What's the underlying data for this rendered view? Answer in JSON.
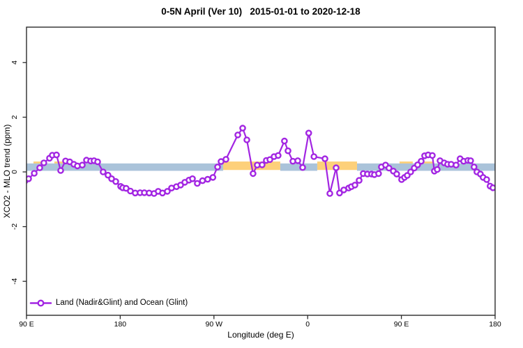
{
  "title": "0-5N April (Ver 10)   2015-01-01 to 2020-12-18",
  "legend_label": "Land (Nadir&Glint) and Ocean (Glint)",
  "colors": {
    "series": "#a225e2",
    "band_blue": "#aac3da",
    "band_yellow": "#fdd07a",
    "axis": "#2b2b2b",
    "text": "#000000",
    "background": "#ffffff"
  },
  "chart_data": {
    "type": "line",
    "title": "0-5N April (Ver 10)   2015-01-01 to 2020-12-18",
    "xlabel": "Longitude (deg E)",
    "ylabel": "XCO2 - MLO trend (ppm)",
    "xlim": [
      90,
      540
    ],
    "ylim": [
      -5.3,
      5.3
    ],
    "grid": false,
    "legend_position": "bottom-left-inside",
    "x_ticks": [
      {
        "value": 90,
        "label": "90 E"
      },
      {
        "value": 180,
        "label": "180"
      },
      {
        "value": 270,
        "label": "90 W"
      },
      {
        "value": 360,
        "label": "0"
      },
      {
        "value": 450,
        "label": "90 E"
      },
      {
        "value": 540,
        "label": "180"
      }
    ],
    "y_ticks": [
      {
        "value": -4,
        "label": "-4"
      },
      {
        "value": -2,
        "label": "-2"
      },
      {
        "value": 0,
        "label": "0"
      },
      {
        "value": 2,
        "label": "2"
      },
      {
        "value": 4,
        "label": "4"
      }
    ],
    "bands": {
      "yellow": {
        "color": "#fdd07a",
        "y_range": [
          0.07,
          0.38
        ],
        "segments": [
          [
            96.7,
            106.1
          ],
          [
            116.8,
            130.2
          ],
          [
            278.8,
            333.7
          ],
          [
            369.2,
            407.4
          ],
          [
            448.2,
            460.9
          ],
          [
            467.6,
            481.0
          ]
        ]
      },
      "blue": {
        "color": "#aac3da",
        "y_range": [
          0.04,
          0.31
        ],
        "segments": [
          [
            90,
            278.8
          ],
          [
            333.7,
            369.2
          ],
          [
            407.4,
            540
          ]
        ]
      }
    },
    "series": [
      {
        "name": "Land (Nadir&Glint) and Ocean (Glint)",
        "color": "#a225e2",
        "marker": "open-circle",
        "points": [
          [
            88.5,
            -0.33
          ],
          [
            92,
            -0.25
          ],
          [
            97.4,
            -0.05
          ],
          [
            102.7,
            0.15
          ],
          [
            106.7,
            0.33
          ],
          [
            112.1,
            0.5
          ],
          [
            114.8,
            0.61
          ],
          [
            118.8,
            0.62
          ],
          [
            122.8,
            0.05
          ],
          [
            127.5,
            0.4
          ],
          [
            131.5,
            0.37
          ],
          [
            135.5,
            0.28
          ],
          [
            138.9,
            0.22
          ],
          [
            143.6,
            0.25
          ],
          [
            147.6,
            0.43
          ],
          [
            151.6,
            0.4
          ],
          [
            154.9,
            0.41
          ],
          [
            158.3,
            0.37
          ],
          [
            163.6,
            0.0
          ],
          [
            168.3,
            -0.12
          ],
          [
            171.7,
            -0.25
          ],
          [
            175.7,
            -0.35
          ],
          [
            180.4,
            -0.53
          ],
          [
            182.4,
            -0.58
          ],
          [
            185.7,
            -0.6
          ],
          [
            189.8,
            -0.7
          ],
          [
            194.4,
            -0.77
          ],
          [
            199.1,
            -0.76
          ],
          [
            203.2,
            -0.76
          ],
          [
            207.8,
            -0.77
          ],
          [
            212.5,
            -0.79
          ],
          [
            216.5,
            -0.71
          ],
          [
            220.6,
            -0.77
          ],
          [
            225.3,
            -0.71
          ],
          [
            229.3,
            -0.59
          ],
          [
            234,
            -0.54
          ],
          [
            238,
            -0.48
          ],
          [
            242,
            -0.38
          ],
          [
            246,
            -0.3
          ],
          [
            249.4,
            -0.25
          ],
          [
            254,
            -0.42
          ],
          [
            259,
            -0.32
          ],
          [
            264,
            -0.27
          ],
          [
            269,
            -0.2
          ],
          [
            273.5,
            0.18
          ],
          [
            276.8,
            0.38
          ],
          [
            281.5,
            0.46
          ],
          [
            292.9,
            1.35
          ],
          [
            297.6,
            1.6
          ],
          [
            301.6,
            1.17
          ],
          [
            307.6,
            -0.06
          ],
          [
            311.6,
            0.25
          ],
          [
            316.3,
            0.26
          ],
          [
            320.3,
            0.42
          ],
          [
            323.7,
            0.45
          ],
          [
            327.7,
            0.56
          ],
          [
            331.7,
            0.6
          ],
          [
            337.7,
            1.13
          ],
          [
            341.1,
            0.77
          ],
          [
            345.8,
            0.39
          ],
          [
            350.5,
            0.41
          ],
          [
            355.2,
            0.16
          ],
          [
            361,
            1.42
          ],
          [
            366,
            0.56
          ],
          [
            376.6,
            0.48
          ],
          [
            381.3,
            -0.79
          ],
          [
            387.3,
            0.15
          ],
          [
            390.6,
            -0.77
          ],
          [
            394.7,
            -0.66
          ],
          [
            399.4,
            -0.59
          ],
          [
            402,
            -0.54
          ],
          [
            405.4,
            -0.48
          ],
          [
            409.4,
            -0.31
          ],
          [
            413.4,
            -0.06
          ],
          [
            417.4,
            -0.08
          ],
          [
            421.4,
            -0.08
          ],
          [
            424.1,
            -0.1
          ],
          [
            428.1,
            -0.06
          ],
          [
            430.8,
            0.18
          ],
          [
            434.8,
            0.25
          ],
          [
            438.1,
            0.14
          ],
          [
            442.2,
            0.03
          ],
          [
            445.5,
            -0.08
          ],
          [
            450.2,
            -0.28
          ],
          [
            453,
            -0.2
          ],
          [
            455.6,
            -0.13
          ],
          [
            458.9,
            0.0
          ],
          [
            462.3,
            0.14
          ],
          [
            465.6,
            0.26
          ],
          [
            469,
            0.39
          ],
          [
            472.3,
            0.59
          ],
          [
            475.7,
            0.62
          ],
          [
            479.7,
            0.6
          ],
          [
            481.7,
            0.03
          ],
          [
            484.4,
            0.09
          ],
          [
            487.1,
            0.41
          ],
          [
            491.1,
            0.33
          ],
          [
            494.4,
            0.28
          ],
          [
            497.8,
            0.28
          ],
          [
            502.5,
            0.25
          ],
          [
            506.4,
            0.48
          ],
          [
            509.8,
            0.39
          ],
          [
            513.8,
            0.42
          ],
          [
            516.5,
            0.41
          ],
          [
            519.8,
            0.18
          ],
          [
            522.5,
            0.0
          ],
          [
            525.9,
            -0.08
          ],
          [
            528.5,
            -0.2
          ],
          [
            531.9,
            -0.28
          ],
          [
            535.2,
            -0.52
          ],
          [
            537.9,
            -0.58
          ]
        ]
      }
    ]
  }
}
